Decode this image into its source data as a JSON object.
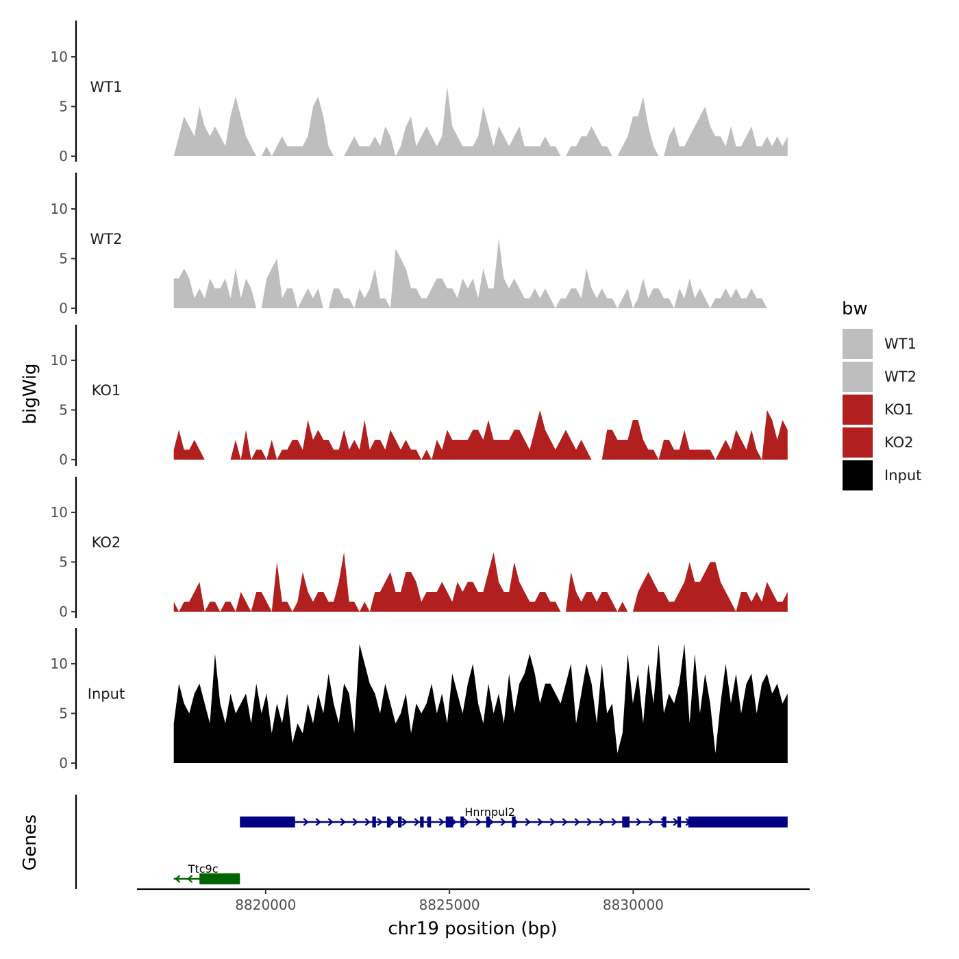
{
  "chart_data": {
    "type": "area",
    "title": "",
    "ylabel": "bigWig",
    "genes_label": "Genes",
    "xlabel": "chr19 position (bp)",
    "x_range": [
      8817500,
      8834200
    ],
    "xlim": [
      8816500,
      8834800
    ],
    "x_ticks": [
      8820000,
      8825000,
      8830000
    ],
    "x_tick_labels": [
      "8820000",
      "8825000",
      "8830000"
    ],
    "ylim": [
      0,
      13.5
    ],
    "y_ticks": [
      0,
      5,
      10
    ],
    "y_tick_labels": [
      "0",
      "5",
      "10"
    ],
    "series": [
      {
        "name": "WT1",
        "color": "#bebebe",
        "values": [
          0,
          2,
          4,
          3,
          2,
          5,
          3,
          2,
          3,
          2,
          1,
          4,
          6,
          4,
          2,
          1,
          0,
          0,
          1,
          0,
          1,
          2,
          1,
          1,
          1,
          1,
          2,
          5,
          6,
          4,
          1,
          0,
          0,
          0,
          1,
          2,
          1,
          1,
          1,
          2,
          1,
          3,
          2,
          0,
          1,
          3,
          4,
          1,
          2,
          3,
          2,
          1,
          2,
          7,
          3,
          2,
          1,
          1,
          1,
          2,
          5,
          3,
          1,
          3,
          2,
          1,
          2,
          3,
          1,
          1,
          1,
          1,
          2,
          1,
          1,
          0,
          0,
          1,
          1,
          2,
          2,
          3,
          2,
          1,
          1,
          0,
          0,
          1,
          2,
          4,
          4,
          6,
          3,
          1,
          0,
          0,
          2,
          3,
          1,
          1,
          2,
          3,
          4,
          5,
          3,
          2,
          2,
          1,
          3,
          1,
          1,
          2,
          3,
          1,
          1,
          2,
          1,
          2,
          1,
          2
        ]
      },
      {
        "name": "WT2",
        "color": "#bebebe",
        "values": [
          3,
          3,
          4,
          3,
          1,
          2,
          1,
          3,
          2,
          2,
          3,
          1,
          4,
          1,
          3,
          2,
          0,
          0,
          3,
          4,
          5,
          1,
          2,
          2,
          0,
          1,
          2,
          1,
          2,
          0,
          0,
          2,
          2,
          1,
          1,
          0,
          2,
          1,
          2,
          4,
          1,
          1,
          0,
          6,
          5,
          4,
          2,
          2,
          1,
          1,
          2,
          3,
          3,
          2,
          2,
          1,
          3,
          2,
          3,
          1,
          4,
          2,
          2,
          7,
          3,
          2,
          3,
          2,
          1,
          1,
          2,
          1,
          2,
          1,
          0,
          1,
          1,
          2,
          2,
          1,
          4,
          2,
          1,
          2,
          1,
          1,
          0,
          1,
          2,
          0,
          1,
          3,
          1,
          2,
          2,
          1,
          1,
          0,
          2,
          1,
          3,
          1,
          2,
          1,
          0,
          1,
          1,
          2,
          1,
          2,
          1,
          1,
          2,
          1,
          1,
          0,
          0,
          0,
          0,
          0
        ]
      },
      {
        "name": "KO1",
        "color": "#b21f1f",
        "values": [
          1,
          3,
          1,
          1,
          2,
          1,
          0,
          0,
          0,
          0,
          0,
          0,
          2,
          0,
          3,
          0,
          1,
          1,
          0,
          2,
          0,
          1,
          1,
          2,
          2,
          1,
          4,
          2,
          3,
          2,
          2,
          1,
          1,
          3,
          1,
          2,
          1,
          4,
          1,
          2,
          2,
          1,
          3,
          2,
          1,
          2,
          1,
          1,
          0,
          1,
          0,
          2,
          1,
          3,
          2,
          2,
          2,
          2,
          3,
          3,
          2,
          4,
          2,
          2,
          2,
          2,
          3,
          3,
          2,
          1,
          3,
          5,
          3,
          2,
          1,
          2,
          3,
          2,
          1,
          2,
          1,
          0,
          0,
          0,
          3,
          3,
          2,
          2,
          2,
          4,
          4,
          2,
          1,
          1,
          0,
          2,
          2,
          1,
          1,
          3,
          1,
          1,
          1,
          1,
          1,
          0,
          1,
          2,
          1,
          3,
          2,
          1,
          3,
          1,
          0,
          5,
          4,
          2,
          4,
          3
        ]
      },
      {
        "name": "KO2",
        "color": "#b21f1f",
        "values": [
          1,
          0,
          1,
          1,
          2,
          3,
          0,
          1,
          1,
          0,
          1,
          1,
          0,
          2,
          1,
          0,
          2,
          2,
          1,
          0,
          5,
          1,
          1,
          0,
          1,
          4,
          2,
          1,
          2,
          2,
          1,
          1,
          3,
          6,
          1,
          1,
          0,
          1,
          0,
          2,
          2,
          3,
          4,
          2,
          2,
          4,
          4,
          3,
          1,
          2,
          2,
          2,
          3,
          2,
          1,
          3,
          2,
          3,
          3,
          2,
          2,
          4,
          6,
          3,
          2,
          2,
          5,
          3,
          2,
          1,
          1,
          2,
          2,
          1,
          1,
          0,
          0,
          4,
          2,
          1,
          2,
          2,
          1,
          2,
          2,
          1,
          0,
          1,
          0,
          0,
          2,
          3,
          4,
          3,
          2,
          2,
          1,
          1,
          2,
          3,
          5,
          3,
          3,
          4,
          5,
          5,
          3,
          2,
          1,
          0,
          2,
          2,
          1,
          2,
          1,
          3,
          2,
          1,
          1,
          2
        ]
      },
      {
        "name": "Input",
        "color": "#000000",
        "values": [
          4,
          8,
          6,
          5,
          7,
          8,
          6,
          4,
          11,
          6,
          4,
          7,
          5,
          6,
          7,
          4,
          8,
          5,
          7,
          3,
          6,
          4,
          7,
          2,
          4,
          3,
          6,
          4,
          7,
          5,
          9,
          6,
          4,
          8,
          7,
          3,
          12,
          10,
          8,
          7,
          5,
          8,
          6,
          4,
          5,
          7,
          3,
          6,
          5,
          6,
          8,
          5,
          7,
          4,
          9,
          7,
          5,
          8,
          10,
          6,
          4,
          8,
          5,
          7,
          4,
          9,
          5,
          8,
          9,
          11,
          9,
          6,
          8,
          8,
          7,
          6,
          8,
          10,
          4,
          7,
          10,
          8,
          4,
          10,
          5,
          6,
          1,
          3,
          11,
          6,
          9,
          4,
          10,
          6,
          12,
          5,
          7,
          6,
          8,
          12,
          4,
          11,
          5,
          9,
          6,
          1,
          6,
          10,
          6,
          9,
          5,
          8,
          9,
          5,
          8,
          9,
          7,
          8,
          6,
          7
        ]
      }
    ],
    "genes": [
      {
        "name": "Hnrnpul2",
        "strand": "+",
        "color": "#000080",
        "start": 8819300,
        "end": 8834200,
        "exons": [
          [
            8819300,
            8820800
          ],
          [
            8822900,
            8823000
          ],
          [
            8823300,
            8823400
          ],
          [
            8823600,
            8823700
          ],
          [
            8824200,
            8824300
          ],
          [
            8824400,
            8824500
          ],
          [
            8824900,
            8825100
          ],
          [
            8825300,
            8825400
          ],
          [
            8826000,
            8826100
          ],
          [
            8826700,
            8826800
          ],
          [
            8829700,
            8829900
          ],
          [
            8830800,
            8830900
          ],
          [
            8831200,
            8831300
          ],
          [
            8831500,
            8834200
          ]
        ]
      },
      {
        "name": "Ttc9c",
        "strand": "-",
        "color": "#006400",
        "start": 8817500,
        "end": 8819300,
        "exons": [
          [
            8818200,
            8819300
          ]
        ]
      }
    ],
    "legend": {
      "title": "bw",
      "position": "right",
      "entries": [
        {
          "label": "WT1",
          "color": "#bebebe"
        },
        {
          "label": "WT2",
          "color": "#bebebe"
        },
        {
          "label": "KO1",
          "color": "#b21f1f"
        },
        {
          "label": "KO2",
          "color": "#b21f1f"
        },
        {
          "label": "Input",
          "color": "#000000"
        }
      ]
    }
  }
}
